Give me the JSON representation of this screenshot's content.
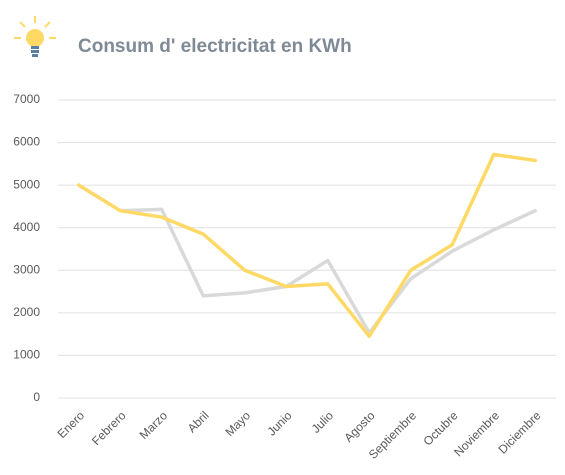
{
  "chart_data": {
    "type": "line",
    "title": "Consum d' electricitat en KWh",
    "categories": [
      "Enero",
      "Febrero",
      "Marzo",
      "Abril",
      "Mayo",
      "Junio",
      "Julio",
      "Agosto",
      "Septiembre",
      "Octubre",
      "Noviembre",
      "Diciembre"
    ],
    "series": [
      {
        "color": "#d9d9d9",
        "values": [
          5000,
          4400,
          4430,
          2400,
          2470,
          2620,
          3230,
          1530,
          2800,
          3450,
          3950,
          4400
        ]
      },
      {
        "color": "#ffd966",
        "values": [
          5000,
          4400,
          4250,
          3850,
          3000,
          2620,
          2680,
          1450,
          3000,
          3600,
          5720,
          5580
        ]
      }
    ],
    "ylim": [
      0,
      7000
    ],
    "yticks": [
      0,
      1000,
      2000,
      3000,
      4000,
      5000,
      6000,
      7000
    ],
    "grid": true
  }
}
